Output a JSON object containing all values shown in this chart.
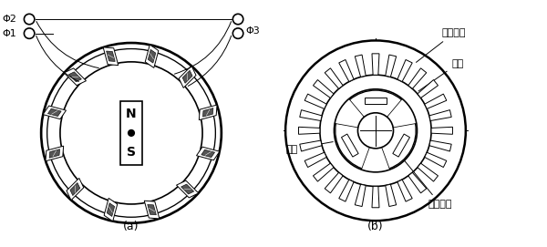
{
  "fig_width": 6.0,
  "fig_height": 2.71,
  "dpi": 100,
  "bg_color": "#ffffff",
  "label_a": "(a)",
  "label_b": "(b)",
  "phi2": "Φ2",
  "phi1": "Φ1",
  "phi3": "Φ3",
  "label_dingzi_xianquan": "定子线圈",
  "label_dingzi": "定子",
  "label_zhuanzi": "转子",
  "label_yongjiu_citie": "永久磁铁",
  "label_N": "N",
  "label_S": "S",
  "lc": "#000000",
  "lw": 1.2,
  "tlw": 0.7
}
